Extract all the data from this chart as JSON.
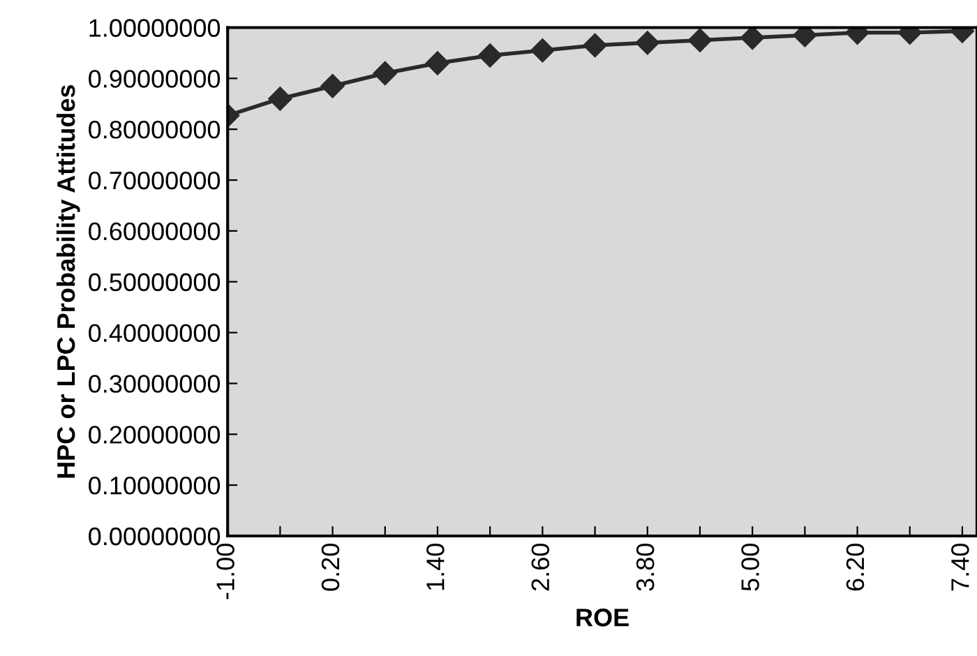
{
  "chart_data": {
    "type": "line",
    "xlabel": "ROE",
    "ylabel": "HPC or LPC Probability Attitudes",
    "categories": [
      "-1.00",
      null,
      "0.20",
      null,
      "1.40",
      null,
      "2.60",
      null,
      "3.80",
      null,
      "5.00",
      null,
      "6.20",
      null,
      "7.40"
    ],
    "series": [
      {
        "color": "#2a2a2a",
        "values": [
          0.827,
          0.86,
          0.885,
          0.91,
          0.93,
          0.945,
          0.955,
          0.965,
          0.97,
          0.975,
          0.98,
          0.985,
          0.99,
          0.99,
          0.993
        ]
      }
    ],
    "ylim": [
      0,
      1
    ],
    "yticks": [
      {
        "value": 0,
        "label": "0.00000000"
      },
      {
        "value": 0.1,
        "label": "0.10000000"
      },
      {
        "value": 0.2,
        "label": "0.20000000"
      },
      {
        "value": 0.3,
        "label": "0.30000000"
      },
      {
        "value": 0.4,
        "label": "0.40000000"
      },
      {
        "value": 0.5,
        "label": "0.50000000"
      },
      {
        "value": 0.6,
        "label": "0.60000000"
      },
      {
        "value": 0.7,
        "label": "0.70000000"
      },
      {
        "value": 0.8,
        "label": "0.80000000"
      },
      {
        "value": 0.9,
        "label": "0.90000000"
      },
      {
        "value": 1,
        "label": "1.00000000"
      }
    ],
    "marker": "diamond",
    "line_style": "solid",
    "grid": false,
    "legend": false
  }
}
